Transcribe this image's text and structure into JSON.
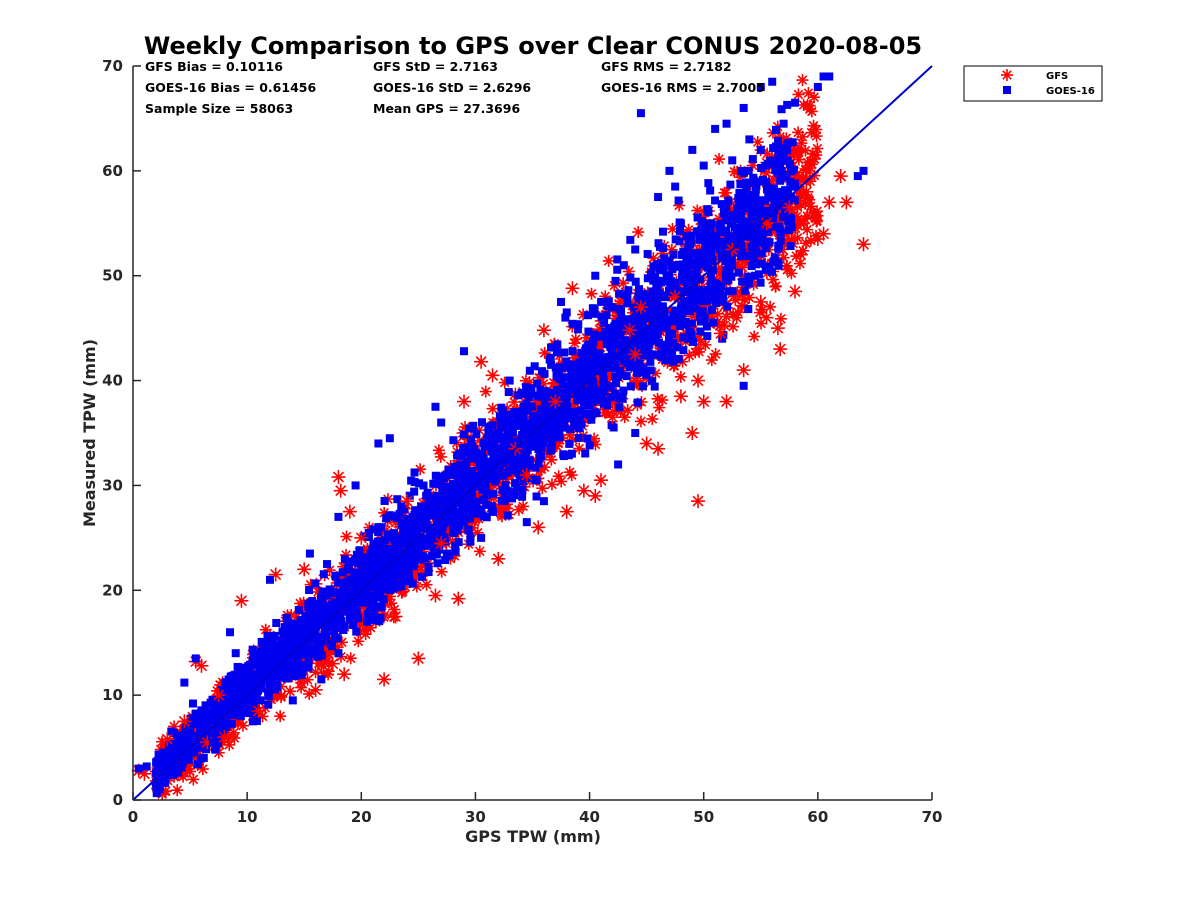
{
  "chart_data": {
    "type": "scatter",
    "title": "Weekly Comparison to GPS over Clear CONUS 2020-08-05",
    "xlabel": "GPS TPW (mm)",
    "ylabel": "Measured TPW (mm)",
    "xlim": [
      0,
      70
    ],
    "ylim": [
      0,
      70
    ],
    "x_ticks": [
      "0",
      "10",
      "20",
      "30",
      "40",
      "50",
      "60",
      "70"
    ],
    "y_ticks": [
      "0",
      "10",
      "20",
      "30",
      "40",
      "50",
      "60",
      "70"
    ],
    "grid": false,
    "legend_position": "top-right outside",
    "reference_line": {
      "from": [
        0,
        0
      ],
      "to": [
        70,
        70
      ],
      "color": "#0000cc"
    },
    "stats": [
      [
        "GFS Bias = 0.10116",
        "GFS StD = 2.7163",
        "GFS RMS = 2.7182"
      ],
      [
        "GOES-16 Bias = 0.61456",
        "GOES-16 StD = 2.6296",
        "GOES-16 RMS = 2.7005"
      ],
      [
        "Sample Size = 58063",
        "Mean GPS = 27.3696",
        ""
      ]
    ],
    "series": [
      {
        "name": "GFS",
        "marker": "asterisk",
        "color": "#ff0000",
        "points": [
          [
            0.5,
            2.8
          ],
          [
            1.0,
            2.5
          ],
          [
            5.5,
            13.2
          ],
          [
            6.0,
            12.8
          ],
          [
            9.5,
            19.0
          ],
          [
            12.5,
            21.5
          ],
          [
            15.0,
            22.0
          ],
          [
            18.0,
            30.8
          ],
          [
            18.2,
            29.5
          ],
          [
            19.0,
            27.5
          ],
          [
            17.5,
            13.0
          ],
          [
            18.5,
            12.0
          ],
          [
            22.0,
            11.5
          ],
          [
            25.0,
            13.5
          ],
          [
            26.5,
            19.5
          ],
          [
            28.5,
            19.2
          ],
          [
            29.0,
            38.0
          ],
          [
            30.5,
            41.8
          ],
          [
            31.5,
            40.5
          ],
          [
            32.0,
            23.0
          ],
          [
            35.5,
            26.0
          ],
          [
            36.0,
            44.8
          ],
          [
            38.0,
            27.5
          ],
          [
            38.5,
            48.8
          ],
          [
            39.5,
            29.5
          ],
          [
            40.5,
            29.0
          ],
          [
            41.0,
            30.5
          ],
          [
            43.5,
            44.8
          ],
          [
            44.5,
            47.0
          ],
          [
            45.0,
            34.0
          ],
          [
            46.0,
            33.5
          ],
          [
            48.0,
            38.5
          ],
          [
            49.0,
            35.0
          ],
          [
            49.5,
            40.0
          ],
          [
            50.0,
            38.0
          ],
          [
            51.5,
            44.5
          ],
          [
            52.0,
            38.0
          ],
          [
            53.5,
            41.0
          ],
          [
            55.0,
            47.5
          ],
          [
            55.5,
            46.0
          ],
          [
            56.5,
            45.0
          ],
          [
            56.7,
            43.0
          ],
          [
            58.0,
            48.5
          ],
          [
            58.5,
            52.0
          ],
          [
            60.0,
            53.5
          ],
          [
            60.5,
            54.0
          ],
          [
            61.0,
            57.0
          ],
          [
            62.0,
            59.5
          ],
          [
            62.5,
            57.0
          ],
          [
            64.0,
            53.0
          ],
          [
            49.5,
            28.5
          ],
          [
            42.0,
            36.5
          ],
          [
            34.5,
            31.0
          ],
          [
            27.0,
            24.5
          ],
          [
            23.0,
            17.5
          ],
          [
            16.0,
            10.5
          ],
          [
            11.0,
            8.5
          ],
          [
            8.0,
            6.0
          ],
          [
            6.5,
            5.5
          ],
          [
            3.0,
            5.8
          ],
          [
            4.5,
            7.5
          ],
          [
            7.5,
            10.0
          ],
          [
            20.0,
            25.0
          ],
          [
            24.0,
            28.5
          ],
          [
            33.5,
            33.5
          ],
          [
            37.0,
            38.0
          ],
          [
            44.0,
            42.5
          ],
          [
            47.5,
            48.0
          ],
          [
            52.5,
            52.5
          ],
          [
            55.5,
            55.0
          ],
          [
            57.5,
            56.5
          ],
          [
            59.0,
            58.0
          ]
        ]
      },
      {
        "name": "GOES-16",
        "marker": "square",
        "color": "#0000ee",
        "points": [
          [
            0.5,
            3.0
          ],
          [
            1.2,
            3.2
          ],
          [
            4.5,
            11.2
          ],
          [
            5.5,
            13.5
          ],
          [
            8.5,
            16.0
          ],
          [
            12.0,
            21.0
          ],
          [
            15.5,
            23.5
          ],
          [
            18.0,
            27.0
          ],
          [
            19.5,
            30.0
          ],
          [
            21.5,
            34.0
          ],
          [
            22.5,
            34.5
          ],
          [
            26.5,
            37.5
          ],
          [
            27.0,
            36.0
          ],
          [
            29.0,
            42.8
          ],
          [
            33.0,
            40.0
          ],
          [
            36.5,
            42.0
          ],
          [
            37.5,
            47.5
          ],
          [
            38.0,
            46.5
          ],
          [
            40.5,
            50.0
          ],
          [
            43.0,
            51.0
          ],
          [
            44.0,
            52.5
          ],
          [
            44.5,
            65.5
          ],
          [
            46.0,
            57.5
          ],
          [
            47.0,
            60.0
          ],
          [
            48.0,
            55.0
          ],
          [
            49.0,
            62.0
          ],
          [
            50.0,
            60.5
          ],
          [
            51.0,
            64.0
          ],
          [
            52.0,
            64.5
          ],
          [
            53.5,
            66.0
          ],
          [
            54.0,
            63.0
          ],
          [
            55.0,
            68.0
          ],
          [
            56.0,
            68.5
          ],
          [
            57.0,
            64.5
          ],
          [
            58.0,
            66.5
          ],
          [
            60.0,
            68.0
          ],
          [
            60.5,
            69.0
          ],
          [
            61.0,
            69.0
          ],
          [
            64.0,
            60.0
          ],
          [
            63.5,
            59.5
          ],
          [
            55.0,
            62.0
          ],
          [
            52.5,
            61.0
          ],
          [
            47.5,
            58.5
          ],
          [
            54.5,
            50.0
          ],
          [
            53.5,
            39.5
          ],
          [
            44.0,
            35.0
          ],
          [
            42.5,
            32.0
          ],
          [
            36.0,
            28.5
          ],
          [
            34.5,
            26.5
          ],
          [
            30.5,
            25.0
          ],
          [
            27.5,
            23.5
          ],
          [
            20.5,
            17.0
          ],
          [
            18.0,
            14.0
          ],
          [
            16.5,
            11.5
          ],
          [
            14.0,
            9.5
          ],
          [
            10.5,
            7.5
          ],
          [
            7.0,
            5.5
          ],
          [
            5.0,
            6.0
          ],
          [
            3.5,
            4.5
          ],
          [
            2.5,
            3.8
          ],
          [
            9.0,
            14.0
          ],
          [
            11.5,
            15.0
          ],
          [
            17.0,
            22.5
          ],
          [
            23.5,
            28.0
          ],
          [
            28.5,
            31.5
          ],
          [
            32.0,
            35.0
          ],
          [
            35.5,
            38.5
          ],
          [
            39.0,
            41.5
          ],
          [
            41.5,
            44.5
          ],
          [
            45.5,
            48.5
          ],
          [
            49.5,
            52.0
          ],
          [
            51.5,
            54.5
          ],
          [
            56.0,
            58.0
          ],
          [
            58.0,
            58.5
          ]
        ]
      }
    ]
  }
}
